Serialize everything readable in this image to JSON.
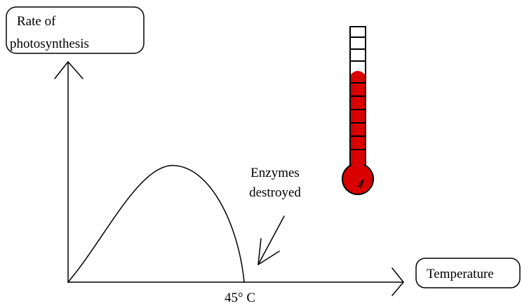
{
  "y_axis_label": [
    "Rate of",
    "photosynthesis"
  ],
  "x_axis_label": "Temperature",
  "annotation": [
    "Enzymes",
    "destroyed"
  ],
  "x_marker": "45° C"
}
